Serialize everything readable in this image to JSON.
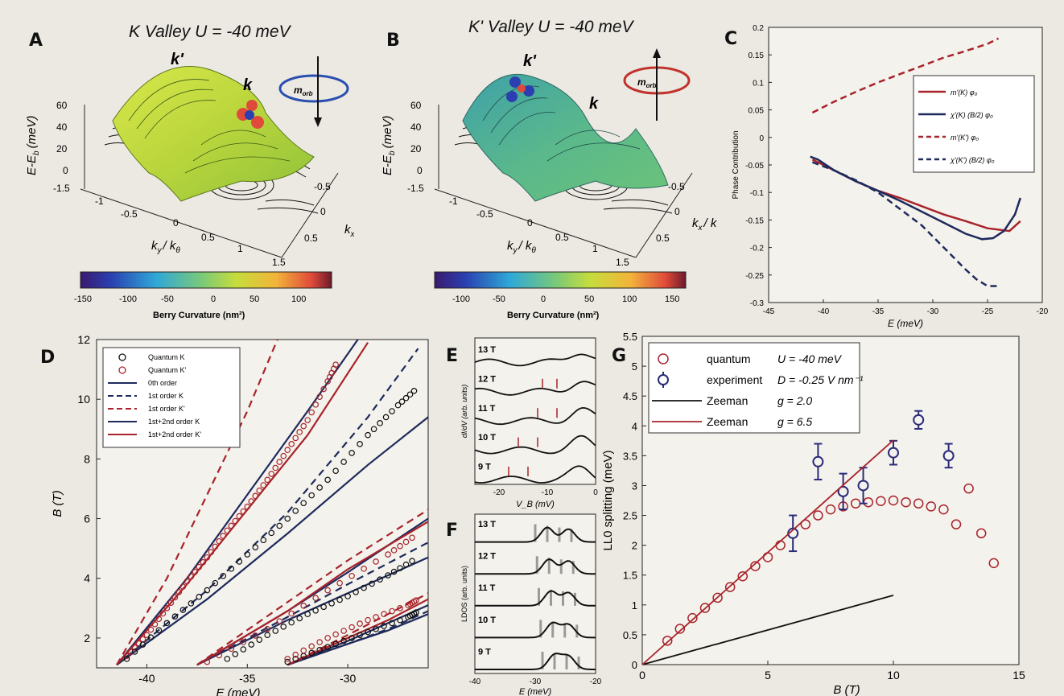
{
  "colors": {
    "red": "#a8232b",
    "navy": "#1e2a5c",
    "black": "#111111"
  },
  "A": {
    "label": "A",
    "title": "K Valley U  = -40 meV",
    "k_label": "k",
    "kprime_label": "k'",
    "m_label": "m",
    "m_sub": "orb",
    "zlabel": "E-E",
    "zlabel_sub": "b",
    "zlabel_unit": "(meV)",
    "zticks": [
      "60",
      "40",
      "20",
      "0"
    ],
    "yticks": [
      "-1.5",
      "-1",
      "-0.5",
      "0",
      "0.5",
      "1",
      "1.5"
    ],
    "xticks": [
      "-0.5",
      "0",
      "0.5"
    ],
    "ylabel": "k",
    "ylabel_sub": "y",
    "ylabel_tail": "/ k",
    "ylabel_tail_sub": "θ",
    "xlabel": "k",
    "xlabel_sub": "x",
    "xlabel_tail": "/ k",
    "xlabel_tail_sub": "θ",
    "cbar_ticks": [
      "-150",
      "-100",
      "-50",
      "0",
      "50",
      "100"
    ],
    "cbar_label": "Berry Curvature (nm²)"
  },
  "B": {
    "label": "B",
    "title": "K' Valley U  = -40 meV",
    "k_label": "k",
    "kprime_label": "k'",
    "m_label": "m",
    "m_sub": "orb",
    "zlabel": "E-E",
    "zlabel_sub": "b",
    "zlabel_unit": "(meV)",
    "zticks": [
      "60",
      "40",
      "20",
      "0"
    ],
    "yticks": [
      "-1.5",
      "-1",
      "-0.5",
      "0",
      "0.5",
      "1",
      "1.5"
    ],
    "xticks": [
      "-0.5",
      "0",
      "0.5"
    ],
    "ylabel": "k",
    "ylabel_sub": "y",
    "ylabel_tail": "/ k",
    "ylabel_tail_sub": "θ",
    "xlabel": "k",
    "xlabel_sub": "x",
    "xlabel_tail": "/ k",
    "xlabel_tail_sub": "θ",
    "cbar_ticks": [
      "-100",
      "-50",
      "0",
      "50",
      "100",
      "150"
    ],
    "cbar_label": "Berry Curvature (nm²)"
  },
  "chart_data": [
    {
      "panel": "C",
      "type": "line",
      "xlabel": "E (meV)",
      "ylabel": "Phase Contribution",
      "xlim": [
        -45,
        -20
      ],
      "ylim": [
        -0.3,
        0.2
      ],
      "xticks": [
        "-45",
        "-40",
        "-35",
        "-30",
        "-25",
        "-20"
      ],
      "yticks": [
        "0.2",
        "0.15",
        "0.1",
        "0.05",
        "0",
        "-0.05",
        "-0.1",
        "-0.15",
        "-0.2",
        "-0.25",
        "-0.3"
      ],
      "legend": [
        "m'(K) φ₀",
        "χ'(K) (B/2) φ₀",
        "m'(K') φ₀",
        "χ'(K') (B/2) φ₀"
      ],
      "series": [
        {
          "name": "m'(K) φ₀",
          "style": "solid",
          "color": "#a8232b",
          "x": [
            -41,
            -39,
            -37,
            -35,
            -33,
            -31,
            -29,
            -27,
            -25,
            -23,
            -22
          ],
          "y": [
            -0.04,
            -0.06,
            -0.08,
            -0.097,
            -0.11,
            -0.125,
            -0.14,
            -0.152,
            -0.165,
            -0.17,
            -0.152
          ]
        },
        {
          "name": "χ'(K) (B/2) φ₀",
          "style": "solid",
          "color": "#1e2a5c",
          "x": [
            -41.2,
            -40.5,
            -39,
            -37,
            -35,
            -33,
            -31,
            -29,
            -27,
            -25.5,
            -24.5,
            -23.5,
            -22.5,
            -22
          ],
          "y": [
            -0.035,
            -0.04,
            -0.06,
            -0.08,
            -0.097,
            -0.115,
            -0.135,
            -0.155,
            -0.175,
            -0.185,
            -0.183,
            -0.17,
            -0.14,
            -0.11
          ]
        },
        {
          "name": "m'(K') φ₀",
          "style": "dashed",
          "color": "#a8232b",
          "x": [
            -41,
            -39,
            -37,
            -35,
            -33,
            -31,
            -29,
            -27,
            -25,
            -24
          ],
          "y": [
            0.045,
            0.065,
            0.083,
            0.1,
            0.115,
            0.13,
            0.145,
            0.157,
            0.17,
            0.18
          ]
        },
        {
          "name": "χ'(K') (B/2) φ₀",
          "style": "dashed",
          "color": "#1e2a5c",
          "x": [
            -41,
            -39,
            -37,
            -35,
            -33,
            -31,
            -29,
            -27,
            -26,
            -25,
            -24
          ],
          "y": [
            -0.045,
            -0.06,
            -0.078,
            -0.1,
            -0.13,
            -0.16,
            -0.2,
            -0.24,
            -0.258,
            -0.27,
            -0.27
          ]
        }
      ]
    },
    {
      "panel": "D",
      "type": "line",
      "xlabel": "E (meV)",
      "ylabel": "B (T)",
      "xlim": [
        -42.5,
        -26
      ],
      "ylim": [
        1,
        12
      ],
      "xticks": [
        "-40",
        "-35",
        "-30"
      ],
      "yticks": [
        "2",
        "4",
        "6",
        "8",
        "10",
        "12"
      ],
      "legend": [
        "Quantum  K",
        "Quantum  K'",
        "0th order",
        "1st order  K",
        "1st order  K'",
        "1st+2nd order  K",
        "1st+2nd order  K'"
      ],
      "series": [
        {
          "name": "0th order",
          "style": "solid",
          "color": "#1e2a5c",
          "x": [
            -41.5,
            -38,
            -35,
            -32,
            -29.5
          ],
          "y": [
            1.1,
            4.0,
            6.8,
            9.6,
            12
          ]
        },
        {
          "name": "0th order",
          "style": "solid",
          "color": "#1e2a5c",
          "x": [
            -37.5,
            -33,
            -30,
            -26
          ],
          "y": [
            1.1,
            2.9,
            4.2,
            6.0
          ]
        },
        {
          "name": "0th order",
          "style": "solid",
          "color": "#1e2a5c",
          "x": [
            -33,
            -30,
            -28,
            -26
          ],
          "y": [
            1.1,
            1.9,
            2.5,
            3.1
          ]
        },
        {
          "name": "1st order  K'",
          "style": "dashed",
          "color": "#a8232b",
          "x": [
            -41.5,
            -39,
            -37,
            -35,
            -33.5
          ],
          "y": [
            1.1,
            4.0,
            6.8,
            9.6,
            12
          ]
        },
        {
          "name": "1st order  K'",
          "style": "dashed",
          "color": "#a8232b",
          "x": [
            -37.5,
            -33,
            -30,
            -26
          ],
          "y": [
            1.1,
            3.2,
            4.6,
            6.3
          ]
        },
        {
          "name": "1st order  K'",
          "style": "dashed",
          "color": "#a8232b",
          "x": [
            -33,
            -30,
            -28,
            -26
          ],
          "y": [
            1.1,
            2.1,
            2.8,
            3.5
          ]
        },
        {
          "name": "1st order  K",
          "style": "dashed",
          "color": "#1e2a5c",
          "x": [
            -41.5,
            -37,
            -33,
            -29,
            -26.5
          ],
          "y": [
            1.1,
            3.6,
            6.2,
            9.4,
            11.7
          ]
        },
        {
          "name": "1st order  K",
          "style": "dashed",
          "color": "#1e2a5c",
          "x": [
            -37.5,
            -33,
            -30,
            -26
          ],
          "y": [
            1.1,
            2.7,
            3.8,
            5.2
          ]
        },
        {
          "name": "1st order  K",
          "style": "dashed",
          "color": "#1e2a5c",
          "x": [
            -33,
            -30,
            -28,
            -26
          ],
          "y": [
            1.1,
            1.8,
            2.3,
            2.9
          ]
        },
        {
          "name": "1st+2nd order  K",
          "style": "solid",
          "color": "#1e2a5c",
          "x": [
            -41.5,
            -37,
            -33,
            -29,
            -26
          ],
          "y": [
            1.1,
            3.3,
            5.5,
            7.8,
            9.4
          ]
        },
        {
          "name": "1st+2nd order  K",
          "style": "solid",
          "color": "#1e2a5c",
          "x": [
            -37.5,
            -33,
            -30,
            -26
          ],
          "y": [
            1.1,
            2.6,
            3.5,
            4.7
          ]
        },
        {
          "name": "1st+2nd order  K",
          "style": "solid",
          "color": "#1e2a5c",
          "x": [
            -33,
            -30,
            -28,
            -26
          ],
          "y": [
            1.1,
            1.8,
            2.25,
            2.8
          ]
        },
        {
          "name": "1st+2nd order  K'",
          "style": "solid",
          "color": "#a8232b",
          "x": [
            -41.5,
            -38,
            -35,
            -32,
            -29
          ],
          "y": [
            1.1,
            3.8,
            6.3,
            8.8,
            11.9
          ]
        },
        {
          "name": "1st+2nd order  K'",
          "style": "solid",
          "color": "#a8232b",
          "x": [
            -37.5,
            -33,
            -30,
            -26
          ],
          "y": [
            1.1,
            2.9,
            4.3,
            5.9
          ]
        },
        {
          "name": "1st+2nd order  K'",
          "style": "solid",
          "color": "#a8232b",
          "x": [
            -33,
            -30,
            -28,
            -26
          ],
          "y": [
            1.1,
            2.0,
            2.6,
            3.3
          ]
        },
        {
          "name": "Quantum  K'",
          "style": "markers",
          "color": "#a8232b",
          "x": [
            -41,
            -40,
            -39,
            -38,
            -37,
            -36,
            -35,
            -34,
            -33,
            -32,
            -31,
            -30.5
          ],
          "y": [
            1.4,
            2.1,
            3.0,
            3.9,
            4.7,
            5.6,
            6.4,
            7.3,
            8.3,
            9.3,
            10.6,
            11.3
          ]
        },
        {
          "name": "Quantum  K",
          "style": "markers",
          "color": "#111111",
          "x": [
            -41,
            -39,
            -37,
            -35,
            -33,
            -31,
            -29,
            -27.5,
            -26.5
          ],
          "y": [
            1.3,
            2.5,
            3.6,
            4.8,
            6.0,
            7.3,
            8.8,
            9.8,
            10.4
          ]
        },
        {
          "name": "Quantum  K",
          "style": "markers",
          "color": "#111111",
          "x": [
            -36,
            -34,
            -32,
            -30,
            -28,
            -26.5
          ],
          "y": [
            1.3,
            2.1,
            2.8,
            3.4,
            4.1,
            4.7
          ]
        },
        {
          "name": "Quantum  K'",
          "style": "markers",
          "color": "#a8232b",
          "x": [
            -37,
            -34,
            -31,
            -28,
            -26.5
          ],
          "y": [
            1.2,
            2.3,
            3.6,
            4.8,
            5.5
          ]
        },
        {
          "name": "Quantum  K",
          "style": "markers",
          "color": "#111111",
          "x": [
            -33,
            -31,
            -29,
            -27,
            -26.5
          ],
          "y": [
            1.2,
            1.7,
            2.2,
            2.7,
            2.9
          ]
        },
        {
          "name": "Quantum  K'",
          "style": "markers",
          "color": "#a8232b",
          "x": [
            -33,
            -31,
            -29,
            -27,
            -26.5
          ],
          "y": [
            1.3,
            2.0,
            2.6,
            3.1,
            3.3
          ]
        }
      ]
    },
    {
      "panel": "E",
      "type": "line",
      "ylabel": "dI/dV (arb. units)",
      "xlabel": "V_B (mV)",
      "xlim": [
        -25,
        0
      ],
      "xticks": [
        "-20",
        "-10",
        "0"
      ],
      "traces": [
        "13 T",
        "12 T",
        "11 T",
        "10 T",
        "9 T"
      ],
      "red_tick_positions_mV": [
        [],
        [
          -11,
          -8
        ],
        [
          -12,
          -8
        ],
        [
          -16,
          -12
        ],
        [
          -18,
          -14
        ]
      ]
    },
    {
      "panel": "F",
      "type": "line",
      "ylabel": "LDOS (arb. units)",
      "xlabel": "E (meV)",
      "xlim": [
        -40,
        -20
      ],
      "xticks": [
        "-40",
        "-30",
        "-20"
      ],
      "traces": [
        "13 T",
        "12 T",
        "11 T",
        "10 T",
        "9 T"
      ]
    },
    {
      "panel": "G",
      "type": "scatter",
      "xlabel": "B (T)",
      "ylabel": "LL0 splitting (meV)",
      "xlim": [
        0,
        15
      ],
      "ylim": [
        0,
        5.5
      ],
      "xticks": [
        "0",
        "5",
        "10",
        "15"
      ],
      "yticks": [
        "0",
        "0.5",
        "1",
        "1.5",
        "2",
        "2.5",
        "3",
        "3.5",
        "4",
        "4.5",
        "5",
        "5.5"
      ],
      "legend": [
        {
          "name": "quantum",
          "param": "U = -40 meV"
        },
        {
          "name": "experiment",
          "param": "D = -0.25 V nm⁻¹"
        },
        {
          "name": "Zeeman",
          "param": "g = 2.0"
        },
        {
          "name": "Zeeman",
          "param": "g = 6.5"
        }
      ],
      "series": [
        {
          "name": "quantum",
          "style": "markers-open",
          "color": "#a8232b",
          "x": [
            1,
            1.5,
            2,
            2.5,
            3,
            3.5,
            4,
            4.5,
            5,
            5.5,
            6,
            6.5,
            7,
            7.5,
            8,
            8.5,
            9,
            9.5,
            10,
            10.5,
            11,
            11.5,
            12,
            12.5,
            13,
            13.5,
            14
          ],
          "y": [
            0.4,
            0.6,
            0.78,
            0.95,
            1.12,
            1.3,
            1.48,
            1.65,
            1.8,
            2.0,
            2.2,
            2.35,
            2.5,
            2.6,
            2.65,
            2.7,
            2.72,
            2.74,
            2.75,
            2.72,
            2.7,
            2.65,
            2.6,
            2.35,
            2.95,
            2.2,
            1.7
          ]
        },
        {
          "name": "experiment",
          "style": "errorbars",
          "color": "#2a2a7a",
          "x": [
            6,
            7,
            8,
            8.8,
            10,
            11,
            12.2
          ],
          "y": [
            2.2,
            3.4,
            2.9,
            3.0,
            3.55,
            4.1,
            3.5
          ],
          "err": [
            0.3,
            0.3,
            0.3,
            0.3,
            0.2,
            0.15,
            0.2
          ]
        },
        {
          "name": "Zeeman",
          "label": "g = 2.0",
          "style": "solid",
          "color": "#111111",
          "x": [
            0,
            10
          ],
          "y": [
            0,
            1.16
          ]
        },
        {
          "name": "Zeeman",
          "label": "g = 6.5",
          "style": "solid",
          "color": "#a8232b",
          "x": [
            0,
            10
          ],
          "y": [
            0,
            3.76
          ]
        }
      ]
    }
  ]
}
